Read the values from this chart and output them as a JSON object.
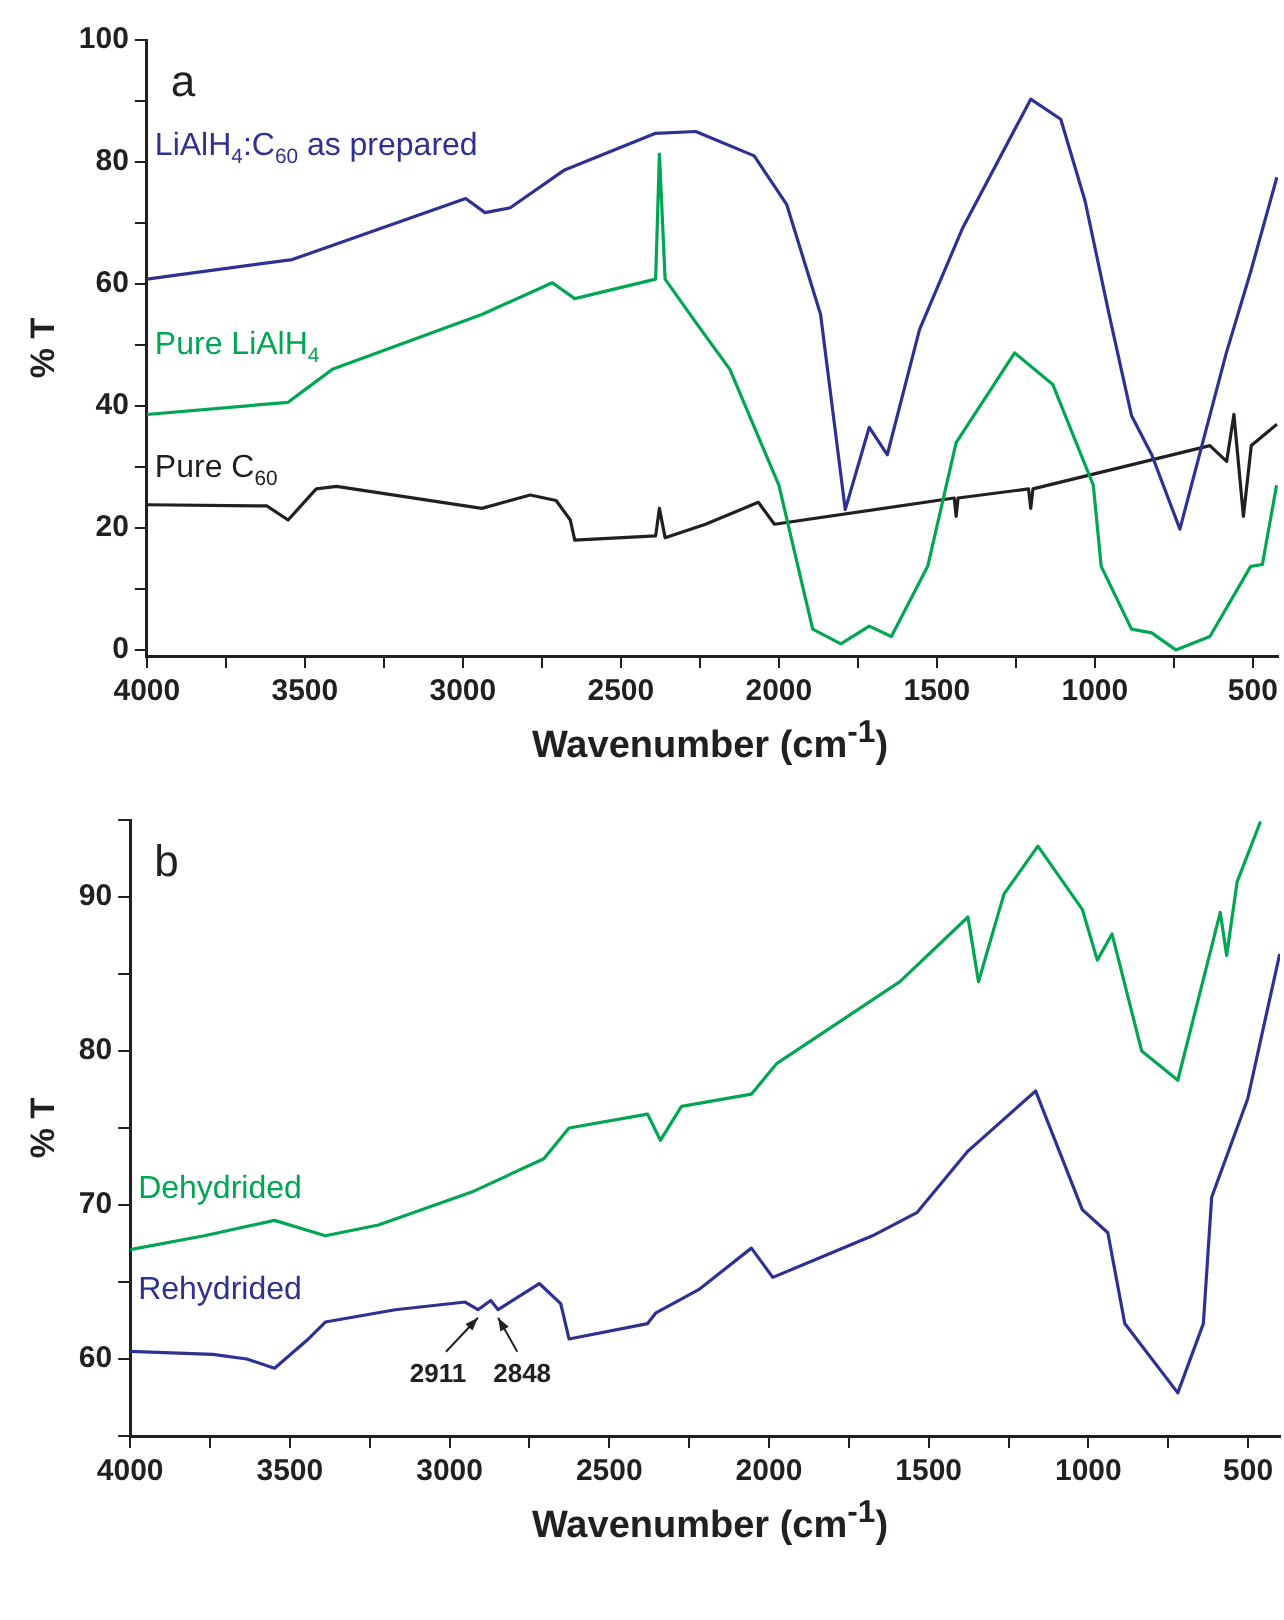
{
  "chart_data": [
    {
      "type": "line",
      "xlabel": "Wavenumber (cm$^{-1}$)",
      "ylabel": "% T",
      "xlim": [
        4000,
        420
      ],
      "ylim": [
        -1,
        100
      ],
      "marker": "none",
      "line_style": "solid",
      "xticks": [
        4000,
        {
          "value": 3750,
          "label": null
        },
        3500,
        {
          "value": 3250,
          "label": null
        },
        3000,
        {
          "value": 2750,
          "label": null
        },
        2500,
        {
          "value": 2250,
          "label": null
        },
        2000,
        {
          "value": 1750,
          "label": null
        },
        1500,
        {
          "value": 1250,
          "label": null
        },
        1000,
        {
          "value": 750,
          "label": null
        },
        500
      ],
      "yticks": [
        0,
        {
          "value": 10,
          "label": null
        },
        20,
        {
          "value": 30,
          "label": null
        },
        40,
        {
          "value": 50,
          "label": null
        },
        60,
        {
          "value": 70,
          "label": null
        },
        80,
        {
          "value": 90,
          "label": null
        },
        100
      ],
      "annotations": [
        "a"
      ],
      "series": [
        {
          "name": "LiAlH$_{4}$:C$_{60}$ as prepared",
          "color": "#2e3192",
          "x": [
            4000,
            3540,
            2991,
            2930,
            2850,
            2678,
            2390,
            2263,
            2078,
            1975,
            1868,
            1790,
            1714,
            1657,
            1555,
            1420,
            1203,
            1108,
            1031,
            955,
            884,
            820,
            731,
            584,
            507,
            424
          ],
          "values": [
            60.8,
            64,
            74,
            71.7,
            72.5,
            78.7,
            84.7,
            85,
            81,
            73,
            55,
            23,
            36.5,
            32,
            52.5,
            69,
            90.3,
            87,
            73.6,
            55,
            38.4,
            32,
            19.8,
            48.7,
            62,
            77.5
          ]
        },
        {
          "name": "Pure LiAlH$_{4}$",
          "color": "#00a651",
          "x": [
            4000,
            3553,
            3413,
            2940,
            2717,
            2646,
            2390,
            2378,
            2360,
            2263,
            2155,
            2000,
            1893,
            1804,
            1714,
            1644,
            1529,
            1439,
            1254,
            1133,
            1005,
            980,
            884,
            820,
            744,
            636,
            507,
            470,
            425
          ],
          "values": [
            38.6,
            40.6,
            46,
            55,
            60.2,
            57.6,
            60.8,
            81.3,
            60.8,
            53.7,
            46,
            27,
            3.4,
            1,
            3.9,
            2.2,
            13.7,
            34,
            48.7,
            43.5,
            27,
            13.7,
            3.4,
            2.8,
            0,
            2.2,
            13.7,
            14,
            27
          ]
        },
        {
          "name": "Pure C$_{60}$",
          "color": "#231f20",
          "x": [
            4000,
            3620,
            3553,
            3464,
            3400,
            2940,
            2870,
            2787,
            2705,
            2660,
            2646,
            2390,
            2378,
            2360,
            2232,
            2065,
            2014,
            1445,
            1439,
            1433,
            1210,
            1203,
            1196,
            636,
            583,
            560,
            530,
            505,
            424
          ],
          "values": [
            23.8,
            23.6,
            21.3,
            26.4,
            26.8,
            23.2,
            24.2,
            25.4,
            24.5,
            21.3,
            18,
            18.7,
            23.2,
            18.4,
            20.6,
            24.2,
            20.6,
            24.9,
            21.9,
            24.9,
            26.4,
            23.2,
            26.4,
            33.5,
            30.9,
            38.6,
            21.9,
            33.5,
            37
          ]
        }
      ]
    },
    {
      "type": "line",
      "xlabel": "Wavenumber (cm$^{-1}$)",
      "ylabel": "% T",
      "xlim": [
        4000,
        400
      ],
      "ylim": [
        55,
        95
      ],
      "marker": "none",
      "line_style": "solid",
      "xticks": [
        4000,
        {
          "value": 3750,
          "label": null
        },
        3500,
        {
          "value": 3250,
          "label": null
        },
        3000,
        {
          "value": 2750,
          "label": null
        },
        2500,
        {
          "value": 2250,
          "label": null
        },
        2000,
        {
          "value": 1750,
          "label": null
        },
        1500,
        {
          "value": 1250,
          "label": null
        },
        1000,
        {
          "value": 750,
          "label": null
        },
        500
      ],
      "yticks": [
        {
          "value": 55,
          "label": null
        },
        60,
        {
          "value": 65,
          "label": null
        },
        70,
        {
          "value": 75,
          "label": null
        },
        80,
        {
          "value": 85,
          "label": null
        },
        90,
        {
          "value": 95,
          "label": null
        }
      ],
      "annotations": [
        "b",
        {
          "text": "2911",
          "x": 2911,
          "y": 63.2
        },
        {
          "text": "2848",
          "x": 2848,
          "y": 63.2
        }
      ],
      "series": [
        {
          "name": "Dehydrided",
          "color": "#00a651",
          "x": [
            4000,
            3768,
            3548,
            3389,
            3223,
            2924,
            2705,
            2626,
            2380,
            2340,
            2274,
            2055,
            1975,
            1590,
            1377,
            1344,
            1264,
            1158,
            1019,
            972,
            926,
            833,
            720,
            587,
            567,
            534,
            461
          ],
          "values": [
            67.1,
            68,
            69,
            68,
            68.7,
            70.9,
            73,
            75,
            75.9,
            74.2,
            76.4,
            77.2,
            79.2,
            84.5,
            88.7,
            84.5,
            90.2,
            93.3,
            89.2,
            85.9,
            87.6,
            80,
            78.1,
            89,
            86.2,
            91,
            94.9
          ]
        },
        {
          "name": "Rehydrided",
          "color": "#2e3192",
          "x": [
            4000,
            3741,
            3635,
            3548,
            3442,
            3389,
            3170,
            2951,
            2911,
            2871,
            2848,
            2719,
            2652,
            2626,
            2380,
            2354,
            2220,
            2055,
            1988,
            1676,
            1537,
            1377,
            1165,
            1019,
            939,
            886,
            720,
            640,
            614,
            501,
            401
          ],
          "values": [
            60.5,
            60.3,
            60,
            59.4,
            61.3,
            62.4,
            63.2,
            63.7,
            63.2,
            63.8,
            63.2,
            64.9,
            63.6,
            61.3,
            62.3,
            63,
            64.5,
            67.2,
            65.3,
            68,
            69.5,
            73.5,
            77.4,
            69.7,
            68.2,
            62.3,
            57.8,
            62.3,
            70.5,
            76.9,
            86.3
          ]
        }
      ]
    }
  ]
}
